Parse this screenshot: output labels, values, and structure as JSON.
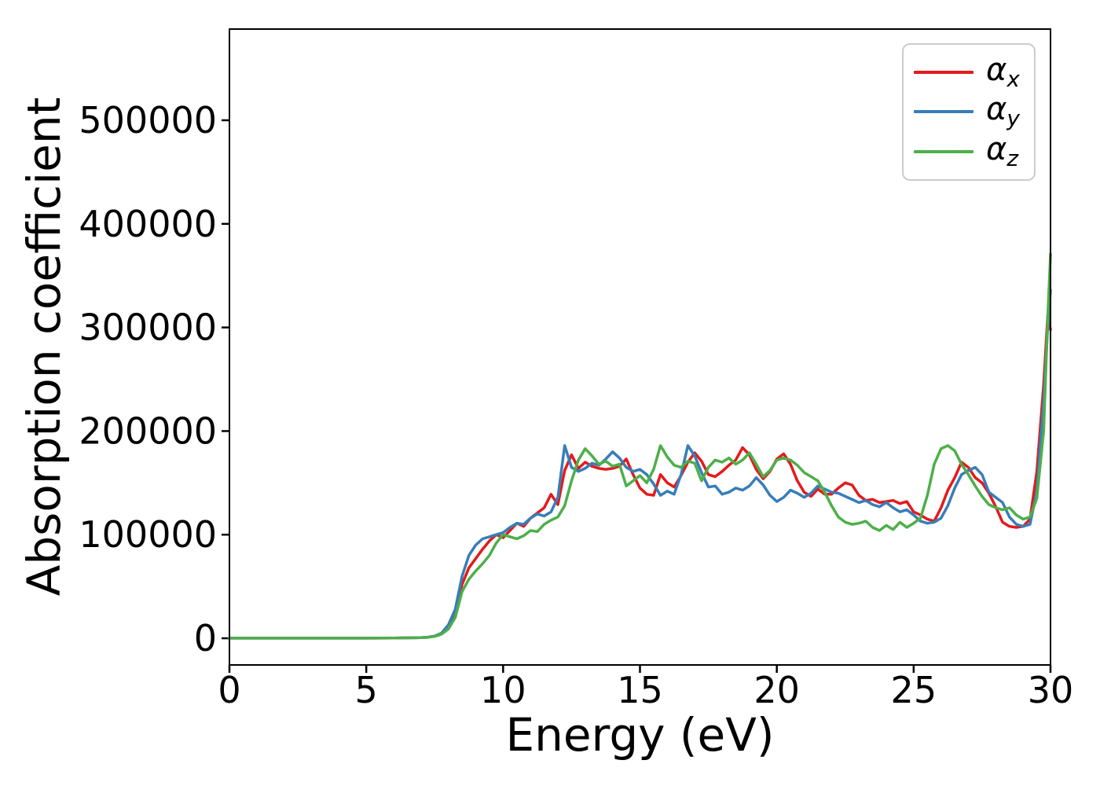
{
  "figure": {
    "background": "#ffffff"
  },
  "axes": {
    "spine_color": "#000000",
    "tick_color": "#000000",
    "tick_label_color": "#000000",
    "legend_border_color": "#cccccc"
  },
  "chart_data": {
    "type": "line",
    "title": "",
    "xlabel": "Energy (eV)",
    "ylabel": "Absorption coefficient",
    "xlim": [
      0,
      30
    ],
    "ylim": [
      -25750,
      588000
    ],
    "xticks": [
      0,
      5,
      10,
      15,
      20,
      25,
      30
    ],
    "yticks": [
      0,
      100000,
      200000,
      300000,
      400000,
      500000
    ],
    "grid": false,
    "legend_position": "upper right",
    "x": [
      0,
      2,
      4,
      5,
      6,
      6.5,
      7,
      7.25,
      7.5,
      7.75,
      8,
      8.25,
      8.5,
      8.75,
      9,
      9.25,
      9.5,
      9.75,
      10,
      10.25,
      10.5,
      10.75,
      11,
      11.25,
      11.5,
      11.75,
      12,
      12.25,
      12.5,
      12.75,
      13,
      13.25,
      13.5,
      13.75,
      14,
      14.25,
      14.5,
      14.75,
      15,
      15.25,
      15.5,
      15.75,
      16,
      16.25,
      16.5,
      16.75,
      17,
      17.25,
      17.5,
      17.75,
      18,
      18.25,
      18.5,
      18.75,
      19,
      19.25,
      19.5,
      19.75,
      20,
      20.25,
      20.5,
      20.75,
      21,
      21.25,
      21.5,
      21.75,
      22,
      22.25,
      22.5,
      22.75,
      23,
      23.25,
      23.5,
      23.75,
      24,
      24.25,
      24.5,
      24.75,
      25,
      25.25,
      25.5,
      25.75,
      26,
      26.25,
      26.5,
      26.75,
      27,
      27.25,
      27.5,
      27.75,
      28,
      28.25,
      28.5,
      28.75,
      29,
      29.25,
      29.5,
      29.75,
      29.9,
      30
    ],
    "series": [
      {
        "name": "alpha_x",
        "label_symbol": "α",
        "label_sub": "x",
        "color": "#e41a1c",
        "values": [
          100,
          100,
          100,
          150,
          250,
          400,
          600,
          1000,
          2000,
          4500,
          11000,
          24000,
          52000,
          68000,
          77000,
          86000,
          94000,
          100000,
          97000,
          104000,
          111000,
          108000,
          116000,
          121000,
          126000,
          139000,
          129000,
          162000,
          177000,
          164000,
          170000,
          166000,
          164000,
          163000,
          164000,
          166000,
          173000,
          158000,
          145000,
          139000,
          138000,
          158000,
          150000,
          146000,
          157000,
          170000,
          179000,
          171000,
          158000,
          156000,
          161000,
          167000,
          172000,
          184000,
          177000,
          163000,
          154000,
          161000,
          173000,
          178000,
          168000,
          152000,
          141000,
          137000,
          144000,
          139000,
          139000,
          145000,
          150000,
          148000,
          138000,
          133000,
          134000,
          131000,
          132000,
          133000,
          130000,
          132000,
          122000,
          119000,
          115000,
          113000,
          126000,
          143000,
          155000,
          170000,
          165000,
          155000,
          150000,
          140000,
          127000,
          112000,
          108000,
          107000,
          108000,
          115000,
          161000,
          245000,
          312000,
          298000
        ]
      },
      {
        "name": "alpha_y",
        "label_symbol": "α",
        "label_sub": "y",
        "color": "#377eb8",
        "values": [
          100,
          100,
          100,
          150,
          250,
          400,
          600,
          1100,
          2200,
          5000,
          13000,
          28000,
          60000,
          80000,
          90000,
          96000,
          98000,
          100000,
          102000,
          107000,
          111000,
          110000,
          116000,
          120000,
          118000,
          122000,
          136000,
          186000,
          165000,
          161000,
          164000,
          169000,
          167000,
          173000,
          180000,
          174000,
          165000,
          161000,
          163000,
          158000,
          149000,
          138000,
          142000,
          139000,
          158000,
          186000,
          176000,
          160000,
          146000,
          147000,
          139000,
          141000,
          145000,
          143000,
          147000,
          155000,
          148000,
          138000,
          132000,
          136000,
          143000,
          140000,
          136000,
          140000,
          147000,
          144000,
          141000,
          140000,
          137000,
          134000,
          131000,
          133000,
          129000,
          127000,
          131000,
          126000,
          122000,
          124000,
          119000,
          113000,
          111000,
          112000,
          116000,
          128000,
          145000,
          158000,
          162000,
          165000,
          158000,
          141000,
          136000,
          131000,
          117000,
          110000,
          108000,
          110000,
          142000,
          230000,
          300000,
          336000
        ]
      },
      {
        "name": "alpha_z",
        "label_symbol": "α",
        "label_sub": "z",
        "color": "#4daf4a",
        "values": [
          100,
          100,
          100,
          150,
          250,
          400,
          600,
          900,
          1800,
          4000,
          9000,
          20000,
          45000,
          57000,
          65000,
          72000,
          80000,
          92000,
          100000,
          98000,
          96000,
          99000,
          104000,
          103000,
          110000,
          114000,
          117000,
          128000,
          152000,
          172000,
          183000,
          176000,
          168000,
          171000,
          166000,
          168000,
          147000,
          152000,
          157000,
          150000,
          163000,
          186000,
          175000,
          167000,
          165000,
          171000,
          169000,
          152000,
          165000,
          172000,
          170000,
          174000,
          168000,
          172000,
          179000,
          168000,
          156000,
          162000,
          172000,
          174000,
          172000,
          167000,
          160000,
          156000,
          152000,
          141000,
          128000,
          117000,
          112000,
          110000,
          111000,
          113000,
          107000,
          104000,
          109000,
          105000,
          112000,
          107000,
          111000,
          116000,
          138000,
          168000,
          183000,
          186000,
          181000,
          168000,
          158000,
          147000,
          137000,
          129000,
          126000,
          124000,
          126000,
          119000,
          115000,
          117000,
          135000,
          200000,
          310000,
          371000
        ]
      }
    ]
  }
}
